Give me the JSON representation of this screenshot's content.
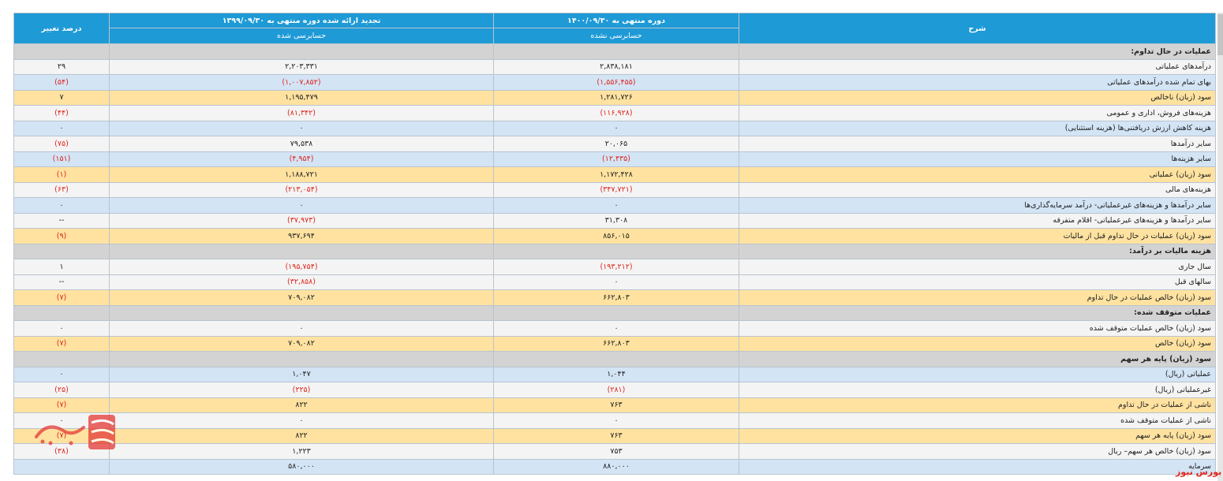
{
  "header": {
    "desc": "شرح",
    "current_period": "دوره منتهی به ۱۴۰۰/۰۹/۳۰",
    "current_status": "حسابرسی نشده",
    "previous_period": "تجدید ارائه شده دوره منتهی به ۱۳۹۹/۰۹/۳۰",
    "previous_status": "حسابرسی شده",
    "change": "درصد تغییر"
  },
  "rows": [
    {
      "type": "section",
      "label": "عملیات در حال تداوم:"
    },
    {
      "type": "white",
      "label": "درآمدهای عملیاتی",
      "cur": "۲,۸۳۸,۱۸۱",
      "prev": "۲,۲۰۳,۳۳۱",
      "chg": "۲۹"
    },
    {
      "type": "blue",
      "label": "بهای تمام شده درآمدهای عملیاتی",
      "cur": "(۱,۵۵۶,۴۵۵)",
      "prev": "(۱,۰۰۷,۸۵۲)",
      "chg": "(۵۴)"
    },
    {
      "type": "yellow",
      "label": "سود (زیان) ناخالص",
      "cur": "۱,۲۸۱,۷۲۶",
      "prev": "۱,۱۹۵,۴۷۹",
      "chg": "۷"
    },
    {
      "type": "white",
      "label": "هزینه‌های فروش، اداری و عمومی",
      "cur": "(۱۱۶,۹۲۸)",
      "prev": "(۸۱,۳۴۲)",
      "chg": "(۴۴)"
    },
    {
      "type": "blue",
      "label": "هزینه کاهش ارزش دریافتنی‌ها (هزینه استثنایی)",
      "cur": "۰",
      "prev": "۰",
      "chg": "۰"
    },
    {
      "type": "white",
      "label": "سایر درآمدها",
      "cur": "۲۰,۰۶۵",
      "prev": "۷۹,۵۳۸",
      "chg": "(۷۵)"
    },
    {
      "type": "blue",
      "label": "سایر هزینه‌ها",
      "cur": "(۱۲,۴۳۵)",
      "prev": "(۴,۹۵۴)",
      "chg": "(۱۵۱)"
    },
    {
      "type": "yellow",
      "label": "سود (زیان) عملیاتی",
      "cur": "۱,۱۷۲,۴۲۸",
      "prev": "۱,۱۸۸,۷۲۱",
      "chg": "(۱)"
    },
    {
      "type": "white",
      "label": "هزینه‌های مالی",
      "cur": "(۳۴۷,۷۲۱)",
      "prev": "(۲۱۳,۰۵۴)",
      "chg": "(۶۳)"
    },
    {
      "type": "blue",
      "label": "سایر درآمدها و هزینه‌های غیرعملیاتی- درآمد سرمایه‌گذاری‌ها",
      "cur": "۰",
      "prev": "۰",
      "chg": "۰"
    },
    {
      "type": "white",
      "label": "سایر درآمدها و هزینه‌های غیرعملیاتی- اقلام متفرقه",
      "cur": "۳۱,۳۰۸",
      "prev": "(۳۷,۹۷۳)",
      "chg": "--"
    },
    {
      "type": "yellow",
      "label": "سود (زیان) عملیات در حال تداوم قبل از مالیات",
      "cur": "۸۵۶,۰۱۵",
      "prev": "۹۳۷,۶۹۴",
      "chg": "(۹)"
    },
    {
      "type": "section",
      "label": "هزینه مالیات بر درآمد:"
    },
    {
      "type": "white",
      "label": "سال جاری",
      "cur": "(۱۹۳,۲۱۲)",
      "prev": "(۱۹۵,۷۵۴)",
      "chg": "۱"
    },
    {
      "type": "white",
      "label": "سالهای قبل",
      "cur": "۰",
      "prev": "(۳۲,۸۵۸)",
      "chg": "--"
    },
    {
      "type": "yellow",
      "label": "سود (زیان) خالص عملیات در حال تداوم",
      "cur": "۶۶۲,۸۰۳",
      "prev": "۷۰۹,۰۸۲",
      "chg": "(۷)"
    },
    {
      "type": "section",
      "label": "عملیات متوقف شده:"
    },
    {
      "type": "white",
      "label": "سود (زیان) خالص عملیات متوقف شده",
      "cur": "۰",
      "prev": "۰",
      "chg": "۰"
    },
    {
      "type": "yellow",
      "label": "سود (زیان) خالص",
      "cur": "۶۶۲,۸۰۳",
      "prev": "۷۰۹,۰۸۲",
      "chg": "(۷)"
    },
    {
      "type": "section",
      "label": "سود (زیان) پایه هر سهم"
    },
    {
      "type": "blue",
      "label": "عملیاتی (ریال)",
      "cur": "۱,۰۴۴",
      "prev": "۱,۰۴۷",
      "chg": "۰"
    },
    {
      "type": "white",
      "label": "غیرعملیاتی (ریال)",
      "cur": "(۲۸۱)",
      "prev": "(۲۲۵)",
      "chg": "(۲۵)"
    },
    {
      "type": "yellow",
      "label": "ناشی از عملیات در حال تداوم",
      "cur": "۷۶۳",
      "prev": "۸۲۲",
      "chg": "(۷)"
    },
    {
      "type": "white",
      "label": "ناشی از عملیات متوقف شده",
      "cur": "۰",
      "prev": "۰",
      "chg": "۰"
    },
    {
      "type": "yellow",
      "label": "سود (زیان) پایه هر سهم",
      "cur": "۷۶۳",
      "prev": "۸۲۲",
      "chg": "(۷)"
    },
    {
      "type": "white",
      "label": "سود (زیان) خالص هر سهم– ریال",
      "cur": "۷۵۳",
      "prev": "۱,۲۲۳",
      "chg": "(۳۸)"
    },
    {
      "type": "blue",
      "label": "سرمایه",
      "cur": "۸۸۰,۰۰۰",
      "prev": "۵۸۰,۰۰۰",
      "chg": ""
    }
  ],
  "watermark": "بورس نیوز",
  "colors": {
    "header": "#1e9ad6",
    "row_white": "#f4f4f4",
    "row_blue": "#d3e4f5",
    "row_yellow": "#ffe2a0",
    "row_section": "#d3d3d3",
    "negative": "#e0241b"
  }
}
